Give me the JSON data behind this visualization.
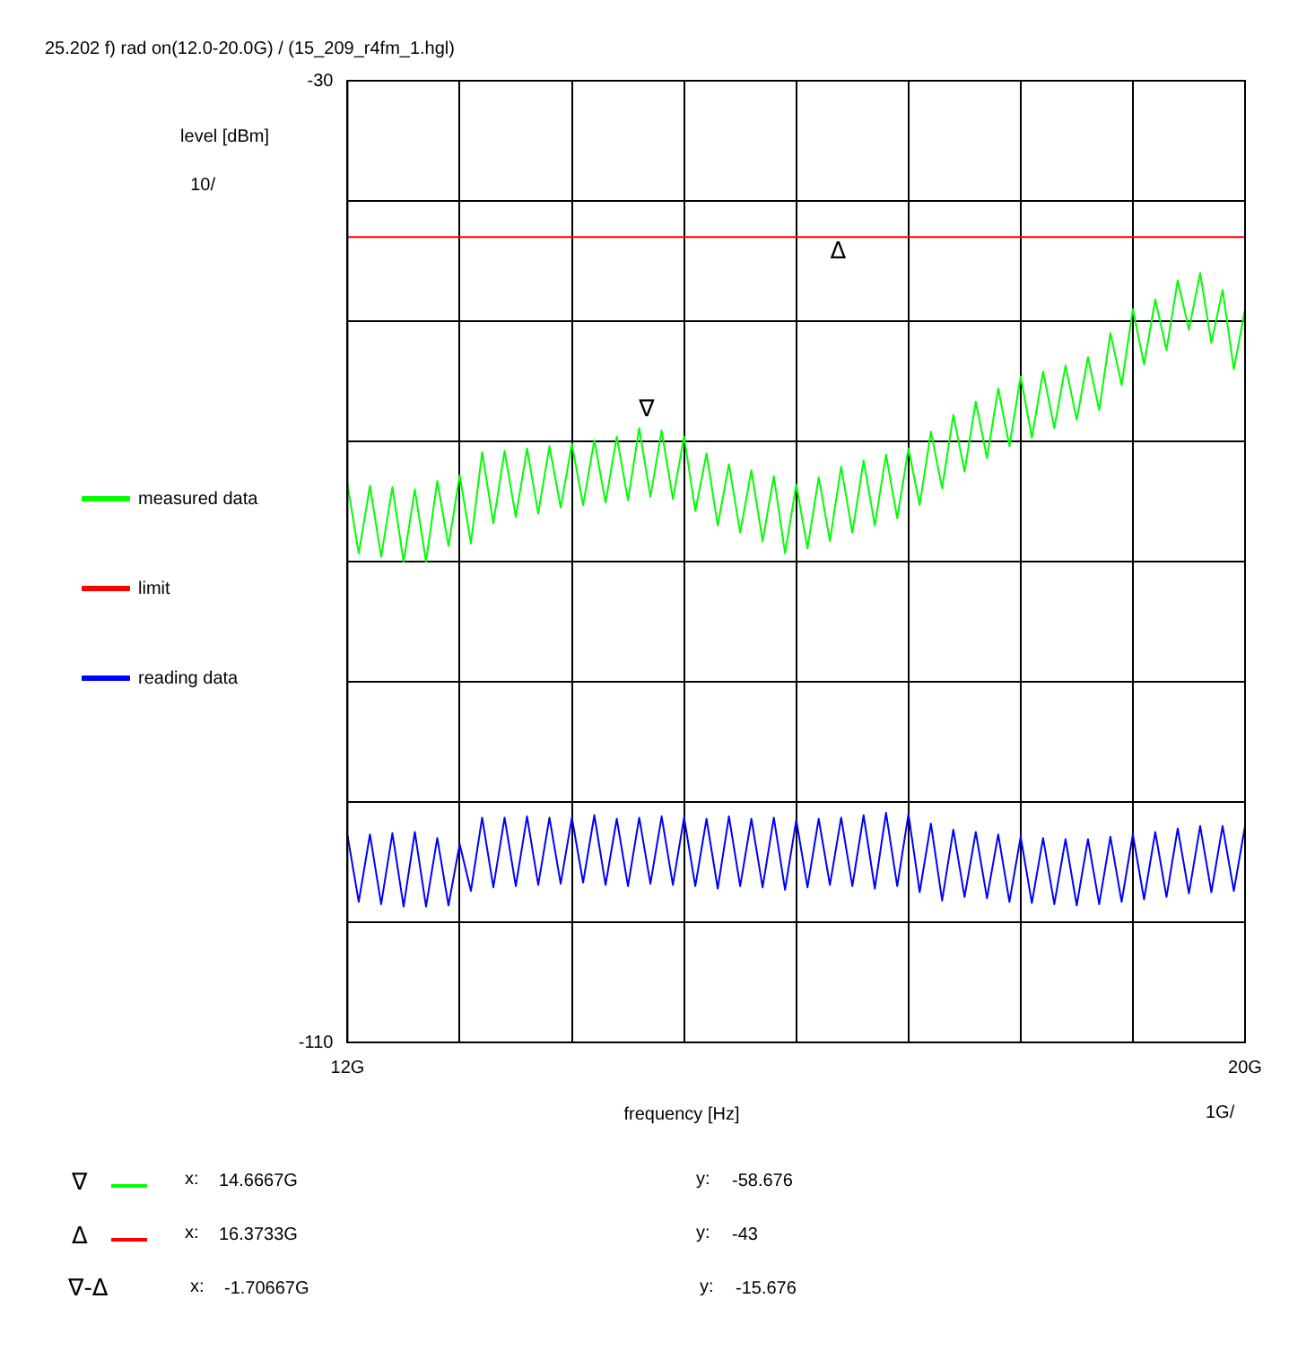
{
  "chart_data": {
    "type": "line",
    "title": "25.202 f) rad on(12.0-20.0G) / (15_209_r4fm_1.hgl)",
    "xlabel": "frequency [Hz]",
    "ylabel": "level [dBm]",
    "x": [
      12.0,
      12.1,
      12.2,
      12.3,
      12.4,
      12.5,
      12.6,
      12.7,
      12.8,
      12.9,
      13.0,
      13.1,
      13.2,
      13.3,
      13.4,
      13.5,
      13.6,
      13.7,
      13.8,
      13.9,
      14.0,
      14.1,
      14.2,
      14.3,
      14.4,
      14.5,
      14.6,
      14.7,
      14.8,
      14.9,
      15.0,
      15.1,
      15.2,
      15.3,
      15.4,
      15.5,
      15.6,
      15.7,
      15.8,
      15.9,
      16.0,
      16.1,
      16.2,
      16.3,
      16.4,
      16.5,
      16.6,
      16.7,
      16.8,
      16.9,
      17.0,
      17.1,
      17.2,
      17.3,
      17.4,
      17.5,
      17.6,
      17.7,
      17.8,
      17.9,
      18.0,
      18.1,
      18.2,
      18.3,
      18.4,
      18.5,
      18.6,
      18.7,
      18.8,
      18.9,
      19.0,
      19.1,
      19.2,
      19.3,
      19.4,
      19.5,
      19.6,
      19.7,
      19.8,
      19.9,
      20.0
    ],
    "series": [
      {
        "name": "measured data",
        "color": "#00ff00",
        "values": [
          -63.6,
          -69.3,
          -63.7,
          -69.6,
          -63.8,
          -70,
          -64,
          -70,
          -63.3,
          -68.7,
          -62.8,
          -68.5,
          -60.9,
          -66.8,
          -60.8,
          -66.3,
          -60.6,
          -66,
          -60.4,
          -65.5,
          -60.2,
          -65.3,
          -59.9,
          -65.1,
          -59.6,
          -64.9,
          -58.9,
          -64.6,
          -59.1,
          -64.8,
          -59.6,
          -65.8,
          -61,
          -67,
          -61.9,
          -67.6,
          -62.4,
          -68.3,
          -62.9,
          -69.3,
          -63.6,
          -68.9,
          -63,
          -68.3,
          -62.1,
          -67.6,
          -61.6,
          -67,
          -61.1,
          -66.4,
          -60.6,
          -65.3,
          -59.2,
          -63.9,
          -57.8,
          -62.5,
          -56.7,
          -61.4,
          -55.6,
          -60.4,
          -54.6,
          -59.7,
          -54.2,
          -58.9,
          -53.7,
          -58.2,
          -53,
          -57.4,
          -51,
          -55.3,
          -49,
          -53.6,
          -48.2,
          -52.4,
          -46.6,
          -50.7,
          -46,
          -51.8,
          -47.4,
          -54,
          -49
        ]
      },
      {
        "name": "limit",
        "color": "#ff0000",
        "x": [
          12,
          20
        ],
        "values": [
          -43,
          -43
        ]
      },
      {
        "name": "reading data",
        "color": "#0000ff",
        "values": [
          -92.8,
          -98.3,
          -92.7,
          -98.5,
          -92.6,
          -98.7,
          -92.5,
          -98.7,
          -93,
          -98.6,
          -93.5,
          -97.4,
          -91.3,
          -97.1,
          -91.3,
          -97,
          -91.2,
          -96.9,
          -91.3,
          -96.8,
          -91.3,
          -96.7,
          -91.1,
          -96.9,
          -91.4,
          -97,
          -91.3,
          -96.8,
          -91.2,
          -96.9,
          -91.3,
          -97,
          -91.4,
          -97.2,
          -91.2,
          -97,
          -91.4,
          -97.1,
          -91.3,
          -97.3,
          -91.5,
          -97.1,
          -91.4,
          -96.9,
          -91.3,
          -97,
          -91.1,
          -97.2,
          -90.9,
          -97,
          -91,
          -97.5,
          -91.8,
          -98.2,
          -92.3,
          -97.9,
          -92.5,
          -98,
          -92.7,
          -98.3,
          -92.9,
          -98.4,
          -93,
          -98.5,
          -93.1,
          -98.6,
          -93.1,
          -98.5,
          -92.9,
          -98.3,
          -92.7,
          -98.1,
          -92.5,
          -97.9,
          -92.2,
          -97.6,
          -92,
          -97.5,
          -92,
          -97.4,
          -92
        ]
      }
    ],
    "xlim": [
      12,
      20
    ],
    "xticks": [
      {
        "value": 12,
        "label": "12G"
      },
      {
        "value": 13,
        "label": null
      },
      {
        "value": 14,
        "label": null
      },
      {
        "value": 15,
        "label": null
      },
      {
        "value": 16,
        "label": null
      },
      {
        "value": 17,
        "label": null
      },
      {
        "value": 18,
        "label": null
      },
      {
        "value": 19,
        "label": null
      },
      {
        "value": 20,
        "label": "20G"
      }
    ],
    "ylim": [
      -110,
      -30
    ],
    "yticks": [
      {
        "value": -110,
        "label": "-110"
      },
      {
        "value": -100,
        "label": null
      },
      {
        "value": -90,
        "label": null
      },
      {
        "value": -80,
        "label": null
      },
      {
        "value": -70,
        "label": null
      },
      {
        "value": -60,
        "label": null
      },
      {
        "value": -50,
        "label": null
      },
      {
        "value": -40,
        "label": null
      },
      {
        "value": -30,
        "label": "-30"
      }
    ],
    "grid": true,
    "legend": "left",
    "marker": "none",
    "line_style": "solid",
    "annotations": [
      {
        "text": "∇",
        "x": 14.6667,
        "y": -58.676
      },
      {
        "text": "Δ",
        "x": 16.3733,
        "y": -43
      },
      "10/",
      "1G/",
      "∇",
      "x:",
      "14.6667G",
      "y:",
      "-58.676",
      "Δ",
      "x:",
      "16.3733G",
      "y:",
      "-43",
      "∇-Δ",
      "x:",
      "-1.70667G",
      "y:",
      "-15.676"
    ]
  }
}
